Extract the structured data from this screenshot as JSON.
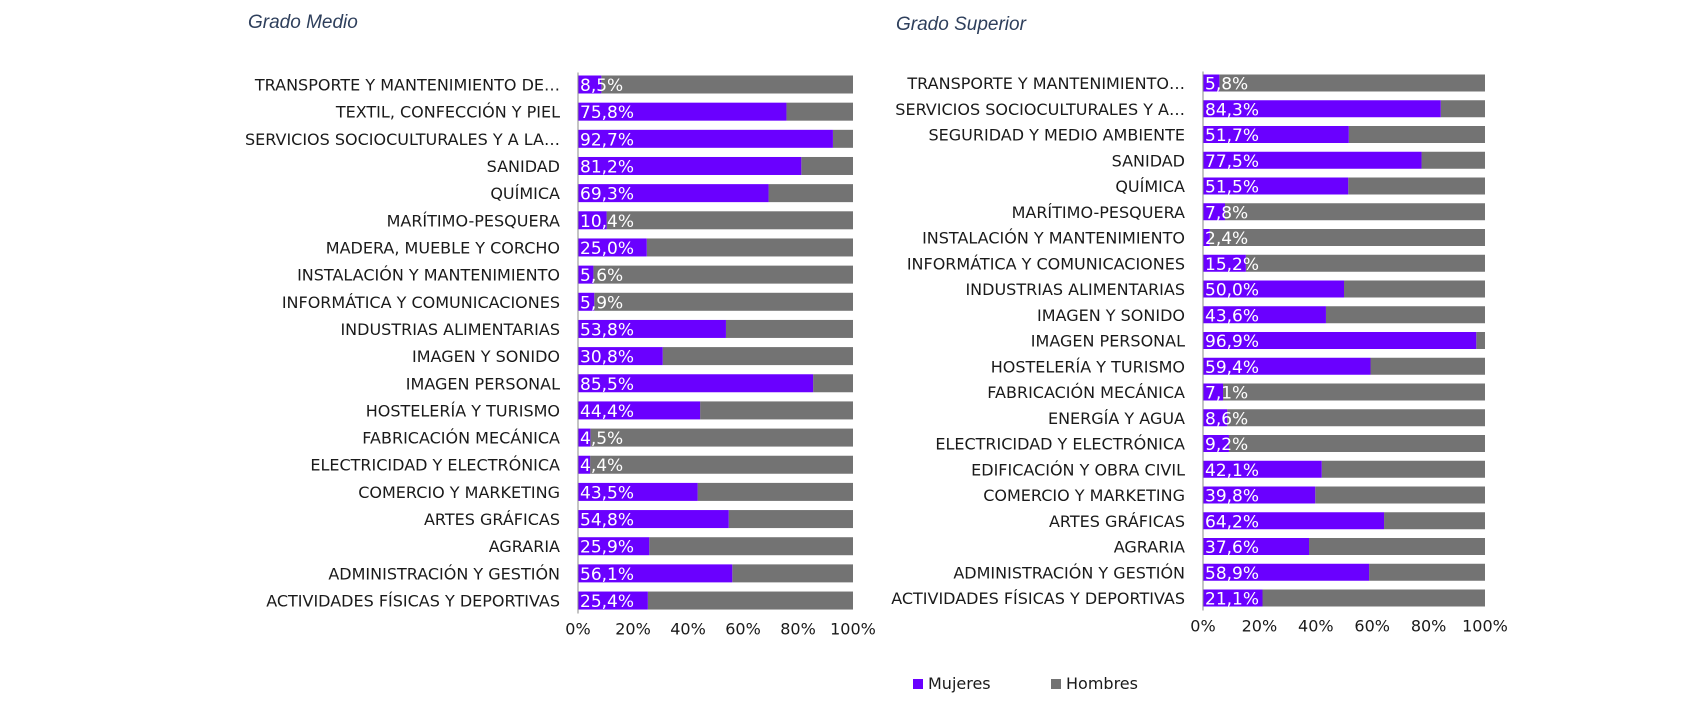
{
  "chart_data": [
    {
      "type": "bar",
      "stacked": "percent",
      "orientation": "horizontal",
      "title": "Grado Medio",
      "categories": [
        "TRANSPORTE Y MANTENIMIENTO DE…",
        "TEXTIL, CONFECCIÓN Y PIEL",
        "SERVICIOS SOCIOCULTURALES Y A LA…",
        "SANIDAD",
        "QUÍMICA",
        "MARÍTIMO-PESQUERA",
        "MADERA, MUEBLE Y CORCHO",
        "INSTALACIÓN Y MANTENIMIENTO",
        "INFORMÁTICA Y COMUNICACIONES",
        "INDUSTRIAS ALIMENTARIAS",
        "IMAGEN Y SONIDO",
        "IMAGEN PERSONAL",
        "HOSTELERÍA Y TURISMO",
        "FABRICACIÓN MECÁNICA",
        "ELECTRICIDAD Y ELECTRÓNICA",
        "COMERCIO Y MARKETING",
        "ARTES GRÁFICAS",
        "AGRARIA",
        "ADMINISTRACIÓN Y GESTIÓN",
        "ACTIVIDADES FÍSICAS Y DEPORTIVAS"
      ],
      "series": [
        {
          "name": "Mujeres",
          "values": [
            8.5,
            75.8,
            92.7,
            81.2,
            69.3,
            10.4,
            25.0,
            5.6,
            5.9,
            53.8,
            30.8,
            85.5,
            44.4,
            4.5,
            4.4,
            43.5,
            54.8,
            25.9,
            56.1,
            25.4
          ]
        },
        {
          "name": "Hombres",
          "values": [
            91.5,
            24.2,
            7.3,
            18.8,
            30.7,
            89.6,
            75.0,
            94.4,
            94.1,
            46.2,
            69.2,
            14.5,
            55.6,
            95.5,
            95.6,
            56.5,
            45.2,
            74.1,
            43.9,
            74.6
          ]
        }
      ],
      "data_labels": [
        "8,5%",
        "75,8%",
        "92,7%",
        "81,2%",
        "69,3%",
        "10,4%",
        "25,0%",
        "5,6%",
        "5,9%",
        "53,8%",
        "30,8%",
        "85,5%",
        "44,4%",
        "4,5%",
        "4,4%",
        "43,5%",
        "54,8%",
        "25,9%",
        "56,1%",
        "25,4%"
      ],
      "xlim": [
        0,
        100
      ],
      "x_ticks": [
        "0%",
        "20%",
        "40%",
        "60%",
        "80%",
        "100%"
      ],
      "grid": false
    },
    {
      "type": "bar",
      "stacked": "percent",
      "orientation": "horizontal",
      "title": "Grado Superior",
      "categories": [
        "TRANSPORTE Y MANTENIMIENTO…",
        "SERVICIOS SOCIOCULTURALES Y A…",
        "SEGURIDAD Y MEDIO AMBIENTE",
        "SANIDAD",
        "QUÍMICA",
        "MARÍTIMO-PESQUERA",
        "INSTALACIÓN Y MANTENIMIENTO",
        "INFORMÁTICA Y COMUNICACIONES",
        "INDUSTRIAS ALIMENTARIAS",
        "IMAGEN Y SONIDO",
        "IMAGEN PERSONAL",
        "HOSTELERÍA Y TURISMO",
        "FABRICACIÓN MECÁNICA",
        "ENERGÍA Y AGUA",
        "ELECTRICIDAD Y ELECTRÓNICA",
        "EDIFICACIÓN Y OBRA CIVIL",
        "COMERCIO Y MARKETING",
        "ARTES GRÁFICAS",
        "AGRARIA",
        "ADMINISTRACIÓN Y GESTIÓN",
        "ACTIVIDADES FÍSICAS Y DEPORTIVAS"
      ],
      "series": [
        {
          "name": "Mujeres",
          "values": [
            5.8,
            84.3,
            51.7,
            77.5,
            51.5,
            7.8,
            2.4,
            15.2,
            50.0,
            43.6,
            96.9,
            59.4,
            7.1,
            8.6,
            9.2,
            42.1,
            39.8,
            64.2,
            37.6,
            58.9,
            21.1
          ]
        },
        {
          "name": "Hombres",
          "values": [
            94.2,
            15.7,
            48.3,
            22.5,
            48.5,
            92.2,
            97.6,
            84.8,
            50.0,
            56.4,
            3.1,
            40.6,
            92.9,
            91.4,
            90.8,
            57.9,
            60.2,
            35.8,
            62.4,
            41.1,
            78.9
          ]
        }
      ],
      "data_labels": [
        "5,8%",
        "84,3%",
        "51,7%",
        "77,5%",
        "51,5%",
        "7,8%",
        "2,4%",
        "15,2%",
        "50,0%",
        "43,6%",
        "96,9%",
        "59,4%",
        "7,1%",
        "8,6%",
        "9,2%",
        "42,1%",
        "39,8%",
        "64,2%",
        "37,6%",
        "58,9%",
        "21,1%"
      ],
      "xlim": [
        0,
        100
      ],
      "x_ticks": [
        "0%",
        "20%",
        "40%",
        "60%",
        "80%",
        "100%"
      ],
      "grid": false
    }
  ],
  "legend": {
    "position": "bottom",
    "items": [
      {
        "name": "Mujeres",
        "color": "#6a00ff"
      },
      {
        "name": "Hombres",
        "color": "#737373"
      }
    ]
  },
  "colors": {
    "mujeres": "#6a00ff",
    "hombres": "#737373"
  }
}
